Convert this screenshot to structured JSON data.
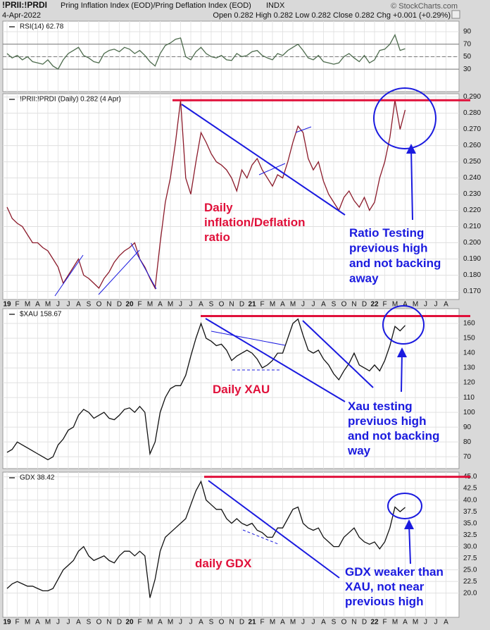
{
  "header": {
    "symbol": "!PRII:!PRDI",
    "name": "Pring Inflation Index (EOD)/Pring Deflation Index (EOD)",
    "exchange": "INDX",
    "date": "4-Apr-2022",
    "quote": "Open 0.282  High 0.282  Low 0.282  Close 0.282  Chg +0.001 (+0.29%)",
    "credit": "© StockCharts.com"
  },
  "chart_data": [
    {
      "type": "line",
      "label": "RSI(14) 62.78",
      "color": "#4d6b4d",
      "ylim": [
        -6,
        107
      ],
      "yticks": [
        30,
        50,
        70,
        90
      ],
      "ref_lines": [
        30,
        70
      ],
      "grid": true,
      "values": [
        55,
        48,
        52,
        45,
        50,
        42,
        40,
        38,
        45,
        35,
        30,
        45,
        55,
        60,
        65,
        52,
        48,
        42,
        40,
        55,
        60,
        62,
        58,
        65,
        62,
        55,
        60,
        52,
        42,
        35,
        55,
        68,
        72,
        78,
        80,
        50,
        45,
        58,
        65,
        55,
        50,
        48,
        52,
        45,
        44,
        55,
        50,
        52,
        58,
        60,
        52,
        48,
        45,
        55,
        52,
        60,
        65,
        70,
        60,
        48,
        45,
        52,
        42,
        40,
        38,
        40,
        50,
        55,
        48,
        42,
        52,
        40,
        45,
        60,
        62,
        70,
        85,
        60,
        62.78,
        null,
        null,
        null,
        null,
        null,
        null,
        null,
        null,
        null
      ]
    },
    {
      "type": "line",
      "label": "!PRII:!PRDI (Daily) 0.282 (4 Apr)",
      "color": "#8b1a2a",
      "ylim": [
        0.165,
        0.292
      ],
      "grid": true,
      "resistance": 0.288,
      "yticks": [
        {
          "value": 0.17,
          "label": "0.170"
        },
        {
          "value": 0.18,
          "label": "0.180"
        },
        {
          "value": 0.19,
          "label": "0.190"
        },
        {
          "value": 0.2,
          "label": "0.200"
        },
        {
          "value": 0.21,
          "label": "0.210"
        },
        {
          "value": 0.22,
          "label": "0.220"
        },
        {
          "value": 0.23,
          "label": "0.230"
        },
        {
          "value": 0.24,
          "label": "0.240"
        },
        {
          "value": 0.25,
          "label": "0.250"
        },
        {
          "value": 0.26,
          "label": "0.260"
        },
        {
          "value": 0.27,
          "label": "0.270"
        },
        {
          "value": 0.28,
          "label": "0.280"
        },
        {
          "value": 0.29,
          "label": "0.290"
        }
      ],
      "categories": [
        "19",
        null,
        "F",
        null,
        "M",
        null,
        "A",
        null,
        "M",
        null,
        "J",
        null,
        "J",
        null,
        "A",
        null,
        "S",
        null,
        "O",
        null,
        "N",
        null,
        "D",
        null,
        "20",
        null,
        "F",
        null,
        "M",
        null,
        "A",
        null,
        "M",
        null,
        "J",
        null,
        "J",
        null,
        "A",
        null,
        "S",
        null,
        "O",
        null,
        "N",
        null,
        "D",
        null,
        "21",
        null,
        "F",
        null,
        "M",
        null,
        "A",
        null,
        "M",
        null,
        "J",
        null,
        "J",
        null,
        "A",
        null,
        "S",
        null,
        "O",
        null,
        "N",
        null,
        "D",
        null,
        "22",
        null,
        "F",
        null,
        "M",
        null,
        "A",
        null,
        "M",
        null,
        "J",
        null,
        "J",
        null,
        "A",
        null
      ],
      "values": [
        0.222,
        0.215,
        0.212,
        0.21,
        0.205,
        0.2,
        0.2,
        0.197,
        0.195,
        0.19,
        0.185,
        0.175,
        0.18,
        0.185,
        0.19,
        0.18,
        0.178,
        0.175,
        0.172,
        0.178,
        0.182,
        0.188,
        0.192,
        0.195,
        0.197,
        0.2,
        0.19,
        0.185,
        0.178,
        0.172,
        0.2,
        0.225,
        0.24,
        0.262,
        0.288,
        0.24,
        0.23,
        0.25,
        0.268,
        0.262,
        0.255,
        0.25,
        0.248,
        0.245,
        0.24,
        0.232,
        0.245,
        0.24,
        0.248,
        0.252,
        0.245,
        0.24,
        0.235,
        0.242,
        0.24,
        0.25,
        0.262,
        0.272,
        0.268,
        0.252,
        0.245,
        0.25,
        0.238,
        0.23,
        0.225,
        0.22,
        0.228,
        0.232,
        0.226,
        0.222,
        0.228,
        0.22,
        0.225,
        0.24,
        0.25,
        0.265,
        0.288,
        0.27,
        0.282,
        null,
        null,
        null,
        null,
        null,
        null,
        null,
        null,
        null
      ],
      "annotations": [
        {
          "lines": [
            "Daily",
            "inflation/Deflation",
            "ratio"
          ],
          "color": "#e0103a"
        },
        {
          "lines": [
            "Ratio Testing",
            "previous high",
            "and not backing",
            "away"
          ],
          "color": "#1a1adf"
        }
      ]
    },
    {
      "type": "line",
      "label": "$XAU 158.67",
      "color": "#111111",
      "ylim": [
        62,
        170
      ],
      "yticks": [
        70,
        80,
        90,
        100,
        110,
        120,
        130,
        140,
        150,
        160
      ],
      "grid": true,
      "resistance": 165,
      "values": [
        73,
        75,
        80,
        78,
        76,
        74,
        72,
        70,
        68,
        70,
        78,
        82,
        88,
        90,
        98,
        102,
        100,
        96,
        98,
        100,
        96,
        95,
        98,
        102,
        103,
        100,
        104,
        100,
        72,
        80,
        100,
        110,
        116,
        118,
        118,
        125,
        138,
        150,
        160,
        150,
        148,
        145,
        146,
        142,
        135,
        138,
        140,
        142,
        140,
        136,
        130,
        132,
        135,
        140,
        140,
        150,
        160,
        163,
        152,
        142,
        140,
        142,
        136,
        132,
        126,
        122,
        128,
        133,
        140,
        132,
        130,
        128,
        132,
        128,
        135,
        145,
        158,
        155,
        158.67,
        null,
        null,
        null,
        null,
        null,
        null,
        null,
        null,
        null
      ],
      "annotations": [
        {
          "lines": [
            "Daily XAU"
          ],
          "color": "#e0103a"
        },
        {
          "lines": [
            "Xau testing",
            "previuos high",
            "and not backing",
            "way"
          ],
          "color": "#1a1adf"
        }
      ]
    },
    {
      "type": "line",
      "label": "GDX 38.42",
      "color": "#111111",
      "ylim": [
        14.8,
        46
      ],
      "grid": true,
      "resistance": 45,
      "yticks": [
        {
          "value": 20,
          "label": "20.0"
        },
        22.5,
        {
          "value": 25,
          "label": "25.0"
        },
        27.5,
        {
          "value": 30,
          "label": "30.0"
        },
        32.5,
        {
          "value": 35,
          "label": "35.0"
        },
        37.5,
        {
          "value": 40,
          "label": "40.0"
        },
        42.5,
        {
          "value": 45,
          "label": "45.0"
        }
      ],
      "categories": [
        "19",
        null,
        "F",
        null,
        "M",
        null,
        "A",
        null,
        "M",
        null,
        "J",
        null,
        "J",
        null,
        "A",
        null,
        "S",
        null,
        "O",
        null,
        "N",
        null,
        "D",
        null,
        "20",
        null,
        "F",
        null,
        "M",
        null,
        "A",
        null,
        "M",
        null,
        "J",
        null,
        "J",
        null,
        "A",
        null,
        "S",
        null,
        "O",
        null,
        "N",
        null,
        "D",
        null,
        "21",
        null,
        "F",
        null,
        "M",
        null,
        "A",
        null,
        "M",
        null,
        "J",
        null,
        "J",
        null,
        "A",
        null,
        "S",
        null,
        "O",
        null,
        "N",
        null,
        "D",
        null,
        "22",
        null,
        "F",
        null,
        "M",
        null,
        "A",
        null,
        "M",
        null,
        "J",
        null,
        "J",
        null,
        "A",
        null
      ],
      "values": [
        21,
        22,
        22.5,
        22,
        21.5,
        21.5,
        21,
        20.5,
        20.5,
        21,
        23,
        25,
        26,
        27,
        29,
        30,
        28,
        27,
        27.5,
        28,
        27,
        26.5,
        28,
        29,
        29,
        28,
        29,
        28,
        19,
        23,
        29,
        32,
        33,
        34,
        35,
        36,
        39,
        42,
        44,
        40,
        39,
        38,
        38,
        36,
        35,
        36,
        35,
        34.5,
        35,
        33.5,
        33,
        32,
        32,
        34,
        34,
        36,
        38,
        38.5,
        35,
        34,
        33.5,
        34,
        32,
        31,
        30,
        30,
        32,
        33,
        34,
        32,
        31,
        30.5,
        31,
        29.5,
        31,
        34,
        38.5,
        37.5,
        38.42,
        null,
        null,
        null,
        null,
        null,
        null,
        null,
        null,
        null
      ],
      "annotations": [
        {
          "lines": [
            "daily GDX"
          ],
          "color": "#e0103a"
        },
        {
          "lines": [
            "GDX weaker than",
            "XAU, not near",
            "previous high"
          ],
          "color": "#1a1adf"
        }
      ]
    }
  ]
}
